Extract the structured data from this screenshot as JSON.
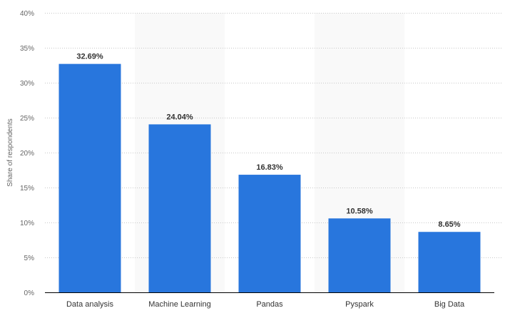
{
  "chart_data": {
    "type": "bar",
    "title": "",
    "xlabel": "",
    "ylabel": "Share of respondents",
    "categories": [
      "Data analysis",
      "Machine Learning",
      "Pandas",
      "Pyspark",
      "Big Data"
    ],
    "values": [
      32.69,
      24.04,
      16.83,
      10.58,
      8.65
    ],
    "value_labels": [
      "32.69%",
      "24.04%",
      "16.83%",
      "10.58%",
      "8.65%"
    ],
    "ylim": [
      0,
      40
    ],
    "yticks": [
      0,
      5,
      10,
      15,
      20,
      25,
      30,
      35,
      40
    ],
    "ytick_labels": [
      "0%",
      "5%",
      "10%",
      "15%",
      "20%",
      "25%",
      "30%",
      "35%",
      "40%"
    ],
    "grid": true,
    "alternating_band_shading": true,
    "colors": {
      "bar": "#2876dd",
      "band": "#f9f9f9",
      "grid": "#c8c8c8",
      "axis": "#000000",
      "tick_text": "#666666",
      "label_text": "#333333"
    }
  }
}
